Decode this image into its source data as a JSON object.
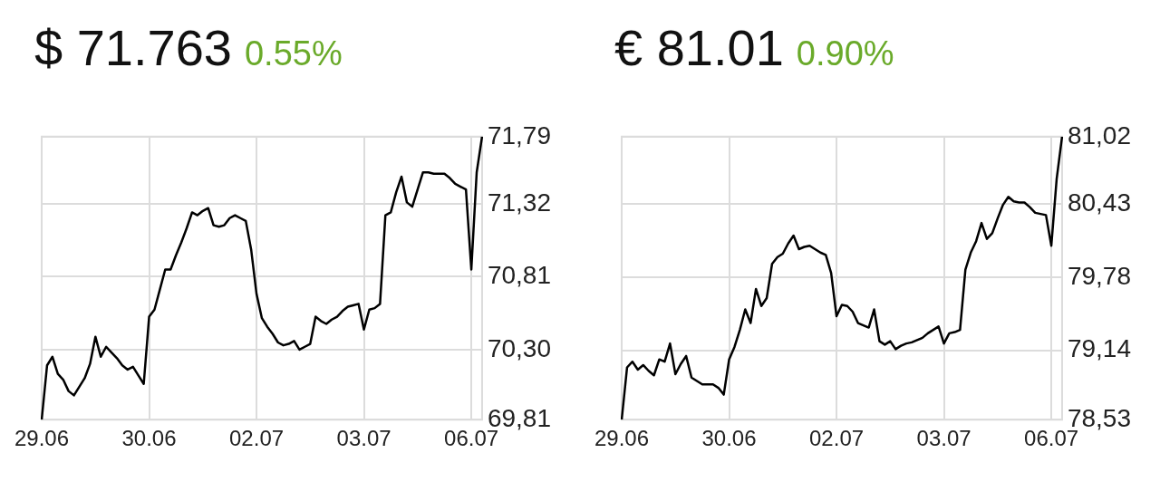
{
  "chart_data": [
    {
      "type": "line",
      "title": "$ 71.763",
      "subtitle": "0.55%",
      "grid": true,
      "categories": [
        "29.06",
        null,
        null,
        null,
        null,
        null,
        null,
        null,
        null,
        null,
        null,
        null,
        null,
        null,
        null,
        null,
        null,
        null,
        null,
        null,
        "30.06",
        null,
        null,
        null,
        null,
        null,
        null,
        null,
        null,
        null,
        null,
        null,
        null,
        null,
        null,
        null,
        null,
        null,
        null,
        null,
        "02.07",
        null,
        null,
        null,
        null,
        null,
        null,
        null,
        null,
        null,
        null,
        null,
        null,
        null,
        null,
        null,
        null,
        null,
        null,
        null,
        "03.07",
        null,
        null,
        null,
        null,
        null,
        null,
        null,
        null,
        null,
        null,
        null,
        null,
        null,
        null,
        null,
        null,
        null,
        null,
        null,
        "06.07",
        null,
        null
      ],
      "ylim": [
        69.81,
        71.79
      ],
      "yticks": [
        {
          "value": 69.81,
          "label": "69,81"
        },
        {
          "value": 70.3,
          "label": "70,30"
        },
        {
          "value": 70.81,
          "label": "70,81"
        },
        {
          "value": 71.32,
          "label": "71,32"
        },
        {
          "value": 71.79,
          "label": "71,79"
        }
      ],
      "series": [
        {
          "color": "#000000",
          "values": [
            69.81,
            70.19,
            70.25,
            70.13,
            70.09,
            70.01,
            69.98,
            70.04,
            70.1,
            70.2,
            70.39,
            70.25,
            70.32,
            70.28,
            70.24,
            70.19,
            70.16,
            70.18,
            70.12,
            70.06,
            70.53,
            70.58,
            70.72,
            70.86,
            70.86,
            70.96,
            71.05,
            71.15,
            71.26,
            71.24,
            71.27,
            71.29,
            71.17,
            71.16,
            71.17,
            71.22,
            71.24,
            71.22,
            71.2,
            71.0,
            70.69,
            70.52,
            70.46,
            70.41,
            70.35,
            70.33,
            70.34,
            70.36,
            70.3,
            70.32,
            70.34,
            70.53,
            70.5,
            70.48,
            70.51,
            70.53,
            70.57,
            70.6,
            70.61,
            70.62,
            70.44,
            70.58,
            70.59,
            70.62,
            71.24,
            71.26,
            71.4,
            71.51,
            71.33,
            71.3,
            71.42,
            71.54,
            71.54,
            71.53,
            71.53,
            71.53,
            71.5,
            71.46,
            71.44,
            71.42,
            70.86,
            71.54,
            71.79
          ]
        }
      ]
    },
    {
      "type": "line",
      "title": "€ 81.01",
      "subtitle": "0.90%",
      "grid": true,
      "categories": [
        "29.06",
        null,
        null,
        null,
        null,
        null,
        null,
        null,
        null,
        null,
        null,
        null,
        null,
        null,
        null,
        null,
        null,
        null,
        null,
        null,
        "30.06",
        null,
        null,
        null,
        null,
        null,
        null,
        null,
        null,
        null,
        null,
        null,
        null,
        null,
        null,
        null,
        null,
        null,
        null,
        null,
        "02.07",
        null,
        null,
        null,
        null,
        null,
        null,
        null,
        null,
        null,
        null,
        null,
        null,
        null,
        null,
        null,
        null,
        null,
        null,
        null,
        "03.07",
        null,
        null,
        null,
        null,
        null,
        null,
        null,
        null,
        null,
        null,
        null,
        null,
        null,
        null,
        null,
        null,
        null,
        null,
        null,
        "06.07",
        null,
        null
      ],
      "ylim": [
        78.53,
        81.02
      ],
      "yticks": [
        {
          "value": 78.53,
          "label": "78,53"
        },
        {
          "value": 79.14,
          "label": "79,14"
        },
        {
          "value": 79.78,
          "label": "79,78"
        },
        {
          "value": 80.43,
          "label": "80,43"
        },
        {
          "value": 81.02,
          "label": "81,02"
        }
      ],
      "series": [
        {
          "color": "#000000",
          "values": [
            78.53,
            78.99,
            79.04,
            78.97,
            79.01,
            78.96,
            78.92,
            79.06,
            79.04,
            79.2,
            78.93,
            79.02,
            79.09,
            78.9,
            78.87,
            78.84,
            78.84,
            78.84,
            78.81,
            78.75,
            79.06,
            79.17,
            79.32,
            79.5,
            79.38,
            79.68,
            79.53,
            79.6,
            79.9,
            79.96,
            79.99,
            80.08,
            80.15,
            80.03,
            80.05,
            80.06,
            80.03,
            80.0,
            79.98,
            79.82,
            79.44,
            79.54,
            79.53,
            79.48,
            79.38,
            79.36,
            79.34,
            79.5,
            79.22,
            79.19,
            79.22,
            79.15,
            79.18,
            79.2,
            79.21,
            79.23,
            79.25,
            79.29,
            79.32,
            79.35,
            79.2,
            79.29,
            79.3,
            79.32,
            79.85,
            80.0,
            80.1,
            80.26,
            80.12,
            80.17,
            80.3,
            80.42,
            80.49,
            80.45,
            80.44,
            80.44,
            80.4,
            80.35,
            80.34,
            80.33,
            80.06,
            80.65,
            81.02
          ]
        }
      ]
    }
  ]
}
